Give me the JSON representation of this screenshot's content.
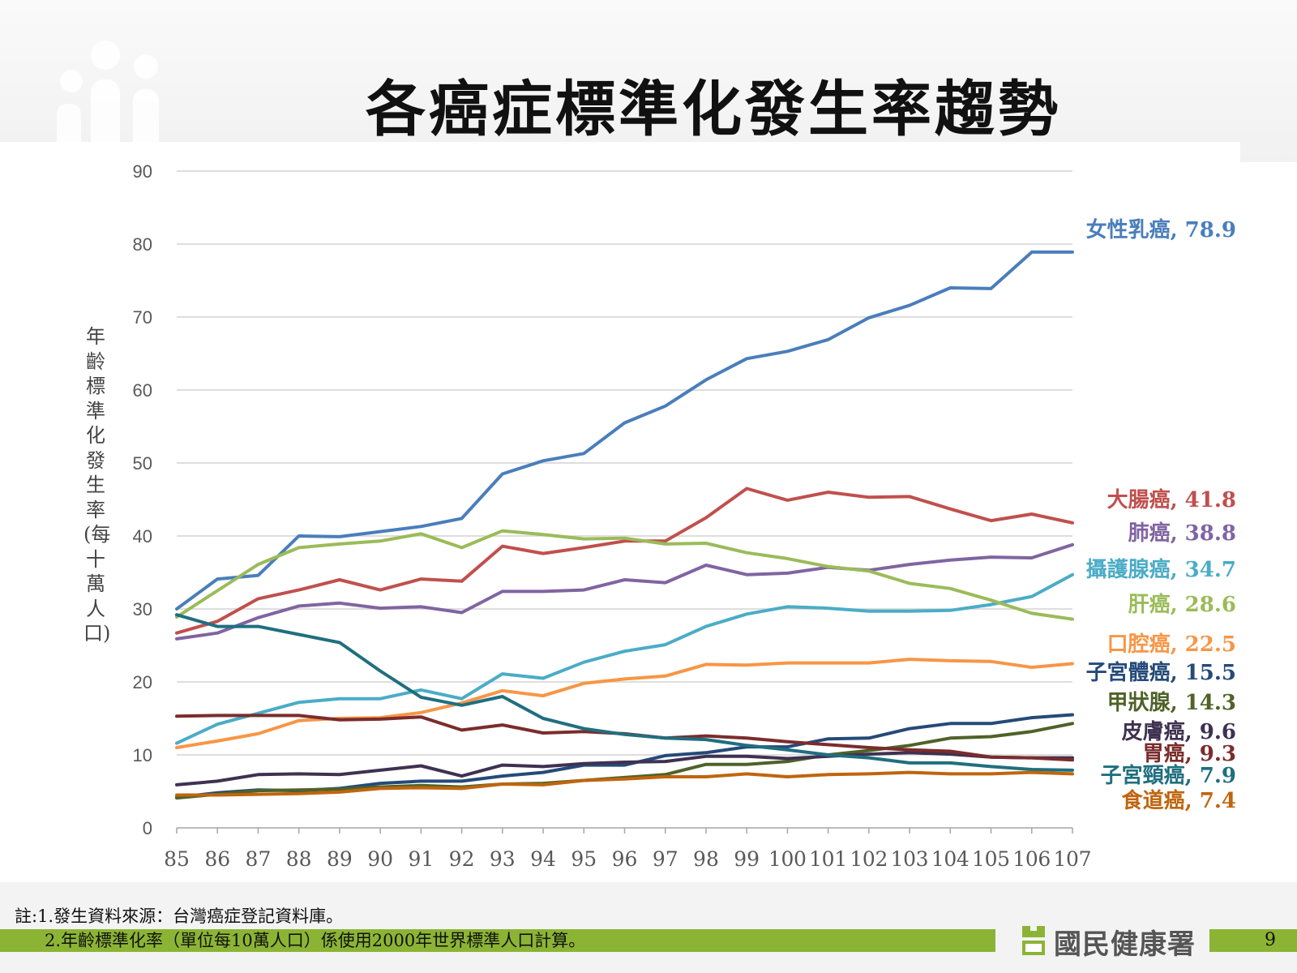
{
  "page": {
    "title": "各癌症標準化發生率趨勢",
    "page_number": "9",
    "organization": "國民健康署",
    "notes": [
      "註:1.發生資料來源：台灣癌症登記資料庫。",
      "2.年齡標準化率（單位每10萬人口）係使用2000年世界標準人口計算。"
    ]
  },
  "chart_data": {
    "type": "line",
    "title": "各癌症標準化發生率趨勢",
    "xlabel": "",
    "ylabel": "年齡標準化發生率(每十萬人口)",
    "ylim": [
      0,
      90
    ],
    "yticks": [
      0,
      10,
      20,
      30,
      40,
      50,
      60,
      70,
      80,
      90
    ],
    "grid": true,
    "legend": "end-labels-right",
    "x": [
      "85",
      "86",
      "87",
      "88",
      "89",
      "90",
      "91",
      "92",
      "93",
      "94",
      "95",
      "96",
      "97",
      "98",
      "99",
      "100",
      "101",
      "102",
      "103",
      "104",
      "105",
      "106",
      "107"
    ],
    "series": [
      {
        "name": "女性乳癌",
        "end_label": "女性乳癌, 78.9",
        "color": "#4a7ebb",
        "values": [
          30.0,
          34.1,
          34.6,
          40.0,
          39.9,
          40.6,
          41.3,
          42.4,
          48.5,
          50.3,
          51.3,
          55.5,
          57.8,
          61.4,
          64.3,
          65.3,
          66.9,
          69.9,
          71.6,
          74.0,
          73.9,
          78.9,
          78.9
        ]
      },
      {
        "name": "大腸癌",
        "end_label": "大腸癌, 41.8",
        "color": "#c0504d",
        "values": [
          26.7,
          28.3,
          31.4,
          32.6,
          34.0,
          32.6,
          34.1,
          33.8,
          38.6,
          37.6,
          38.4,
          39.3,
          39.3,
          42.5,
          46.5,
          44.9,
          46.0,
          45.3,
          45.4,
          43.7,
          42.1,
          43.0,
          41.8
        ]
      },
      {
        "name": "肺癌",
        "end_label": "肺癌, 38.8",
        "color": "#8064a2",
        "values": [
          25.9,
          26.7,
          28.8,
          30.4,
          30.8,
          30.1,
          30.3,
          29.5,
          32.4,
          32.4,
          32.6,
          34.0,
          33.6,
          36.0,
          34.7,
          34.9,
          35.7,
          35.3,
          36.1,
          36.7,
          37.1,
          37.0,
          38.8
        ]
      },
      {
        "name": "攝護腺癌",
        "end_label": "攝護腺癌, 34.7",
        "color": "#4bacc6",
        "values": [
          11.6,
          14.2,
          15.7,
          17.2,
          17.7,
          17.7,
          18.9,
          17.7,
          21.1,
          20.5,
          22.7,
          24.2,
          25.1,
          27.6,
          29.3,
          30.3,
          30.1,
          29.7,
          29.7,
          29.8,
          30.6,
          31.7,
          34.7
        ]
      },
      {
        "name": "肝癌",
        "end_label": "肝癌, 28.6",
        "color": "#9bbb59",
        "values": [
          28.9,
          32.5,
          36.1,
          38.4,
          38.9,
          39.3,
          40.3,
          38.4,
          40.7,
          40.2,
          39.6,
          39.7,
          38.9,
          39.0,
          37.7,
          36.9,
          35.8,
          35.2,
          33.5,
          32.8,
          31.2,
          29.4,
          28.6
        ]
      },
      {
        "name": "口腔癌",
        "end_label": "口腔癌, 22.5",
        "color": "#f79646",
        "values": [
          11.0,
          11.9,
          12.9,
          14.7,
          15.0,
          15.1,
          15.8,
          17.1,
          18.8,
          18.1,
          19.8,
          20.4,
          20.8,
          22.4,
          22.3,
          22.6,
          22.6,
          22.6,
          23.1,
          22.9,
          22.8,
          22.0,
          22.5
        ]
      },
      {
        "name": "子宮體癌",
        "end_label": "子宮體癌, 15.5",
        "color": "#254a79",
        "values": [
          4.2,
          4.8,
          5.2,
          5.1,
          5.4,
          6.1,
          6.4,
          6.4,
          7.1,
          7.6,
          8.6,
          8.6,
          9.9,
          10.3,
          11.1,
          11.1,
          12.2,
          12.3,
          13.6,
          14.3,
          14.3,
          15.1,
          15.5
        ]
      },
      {
        "name": "甲狀腺",
        "end_label": "甲狀腺, 14.3",
        "color": "#4f6228",
        "values": [
          4.1,
          4.6,
          5.1,
          5.2,
          5.3,
          5.6,
          5.8,
          5.6,
          6.0,
          6.1,
          6.5,
          6.9,
          7.3,
          8.7,
          8.7,
          9.1,
          10.0,
          10.6,
          11.3,
          12.3,
          12.5,
          13.2,
          14.3
        ]
      },
      {
        "name": "皮膚癌",
        "end_label": "皮膚癌, 9.6",
        "color": "#3f3151",
        "values": [
          5.9,
          6.4,
          7.3,
          7.4,
          7.3,
          7.9,
          8.5,
          7.1,
          8.6,
          8.4,
          8.8,
          9.0,
          9.1,
          9.8,
          9.8,
          9.5,
          9.8,
          10.1,
          10.3,
          10.1,
          9.7,
          9.6,
          9.6
        ]
      },
      {
        "name": "胃癌",
        "end_label": "胃癌, 9.3",
        "color": "#7b2c2c",
        "values": [
          15.3,
          15.4,
          15.4,
          15.4,
          14.8,
          14.9,
          15.2,
          13.4,
          14.1,
          13.0,
          13.2,
          12.9,
          12.3,
          12.6,
          12.3,
          11.8,
          11.4,
          11.0,
          10.7,
          10.5,
          9.7,
          9.6,
          9.3
        ]
      },
      {
        "name": "子宮頸癌",
        "end_label": "子宮頸癌, 7.9",
        "color": "#1f6f7f",
        "values": [
          29.2,
          27.6,
          27.6,
          26.5,
          25.4,
          21.5,
          17.9,
          16.8,
          18.0,
          15.0,
          13.6,
          12.8,
          12.3,
          12.1,
          11.3,
          10.7,
          10.0,
          9.6,
          8.9,
          8.9,
          8.4,
          8.0,
          7.9
        ]
      },
      {
        "name": "食道癌",
        "end_label": "食道癌, 7.4",
        "color": "#c0650e",
        "values": [
          4.5,
          4.5,
          4.6,
          4.7,
          4.9,
          5.4,
          5.5,
          5.4,
          6.0,
          5.9,
          6.5,
          6.7,
          7.0,
          7.0,
          7.4,
          7.0,
          7.3,
          7.4,
          7.6,
          7.4,
          7.4,
          7.6,
          7.4
        ]
      }
    ]
  }
}
